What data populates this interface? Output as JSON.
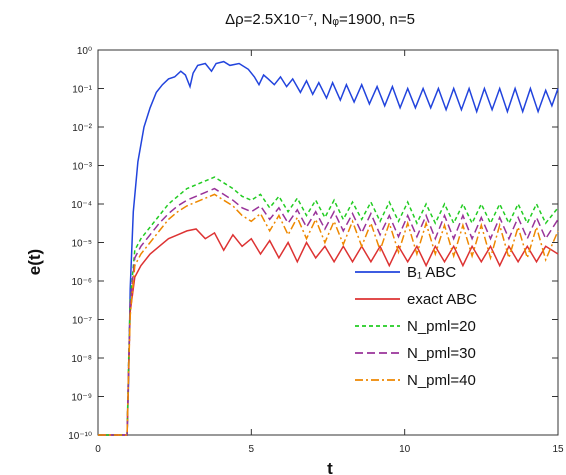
{
  "chart_data": {
    "type": "line",
    "title": "Δρ=2.5X10⁻⁷, Nᵩ=1900, n=5",
    "xlabel": "t",
    "ylabel": "e(t)",
    "xlim": [
      0,
      15
    ],
    "ylim_exp": [
      -10,
      0
    ],
    "yscale": "log",
    "grid": false,
    "legend_position": "bottom-right",
    "x_ticks": [
      "0",
      "5",
      "10",
      "15"
    ],
    "y_ticks": [
      "10⁰",
      "10⁻¹",
      "10⁻²",
      "10⁻³",
      "10⁻⁴",
      "10⁻⁵",
      "10⁻⁶",
      "10⁻⁷",
      "10⁻⁸",
      "10⁻⁹",
      "10⁻¹⁰"
    ],
    "series": [
      {
        "name": "B₁ ABC",
        "color": "#2244dd",
        "dash": "solid",
        "log10": [
          [
            0,
            -10
          ],
          [
            0.95,
            -10
          ],
          [
            1.0,
            -8.5
          ],
          [
            1.05,
            -6.2
          ],
          [
            1.15,
            -4.2
          ],
          [
            1.3,
            -2.9
          ],
          [
            1.5,
            -2.0
          ],
          [
            1.7,
            -1.5
          ],
          [
            1.9,
            -1.1
          ],
          [
            2.1,
            -0.9
          ],
          [
            2.3,
            -0.75
          ],
          [
            2.5,
            -0.7
          ],
          [
            2.7,
            -0.55
          ],
          [
            2.85,
            -0.65
          ],
          [
            3.0,
            -0.95
          ],
          [
            3.1,
            -0.6
          ],
          [
            3.25,
            -0.4
          ],
          [
            3.5,
            -0.35
          ],
          [
            3.7,
            -0.55
          ],
          [
            3.85,
            -0.35
          ],
          [
            4.1,
            -0.3
          ],
          [
            4.3,
            -0.4
          ],
          [
            4.6,
            -0.35
          ],
          [
            4.9,
            -0.5
          ],
          [
            5.1,
            -0.7
          ],
          [
            5.25,
            -0.9
          ],
          [
            5.4,
            -0.65
          ],
          [
            5.55,
            -0.75
          ],
          [
            5.75,
            -0.9
          ],
          [
            5.95,
            -0.7
          ],
          [
            6.15,
            -0.95
          ],
          [
            6.35,
            -0.75
          ],
          [
            6.6,
            -1.1
          ],
          [
            6.8,
            -0.8
          ],
          [
            7.0,
            -1.15
          ],
          [
            7.2,
            -0.85
          ],
          [
            7.45,
            -1.25
          ],
          [
            7.65,
            -0.85
          ],
          [
            7.9,
            -1.3
          ],
          [
            8.1,
            -0.9
          ],
          [
            8.35,
            -1.35
          ],
          [
            8.6,
            -0.9
          ],
          [
            8.85,
            -1.4
          ],
          [
            9.1,
            -0.95
          ],
          [
            9.35,
            -1.45
          ],
          [
            9.6,
            -0.95
          ],
          [
            9.85,
            -1.5
          ],
          [
            10.1,
            -1.0
          ],
          [
            10.35,
            -1.5
          ],
          [
            10.6,
            -1.0
          ],
          [
            10.85,
            -1.5
          ],
          [
            11.1,
            -1.0
          ],
          [
            11.35,
            -1.55
          ],
          [
            11.6,
            -1.0
          ],
          [
            11.85,
            -1.55
          ],
          [
            12.1,
            -1.0
          ],
          [
            12.35,
            -1.6
          ],
          [
            12.6,
            -1.0
          ],
          [
            12.85,
            -1.55
          ],
          [
            13.1,
            -1.0
          ],
          [
            13.35,
            -1.6
          ],
          [
            13.6,
            -1.0
          ],
          [
            13.85,
            -1.6
          ],
          [
            14.1,
            -1.0
          ],
          [
            14.35,
            -1.6
          ],
          [
            14.6,
            -1.05
          ],
          [
            14.8,
            -1.45
          ],
          [
            15.0,
            -1.0
          ]
        ]
      },
      {
        "name": "exact ABC",
        "color": "#dd3333",
        "dash": "solid",
        "log10": [
          [
            0,
            -10
          ],
          [
            0.95,
            -10
          ],
          [
            1.0,
            -8.2
          ],
          [
            1.05,
            -6.8
          ],
          [
            1.2,
            -5.9
          ],
          [
            1.4,
            -5.6
          ],
          [
            1.7,
            -5.3
          ],
          [
            2.0,
            -5.1
          ],
          [
            2.3,
            -4.9
          ],
          [
            2.6,
            -4.8
          ],
          [
            2.9,
            -4.7
          ],
          [
            3.2,
            -4.65
          ],
          [
            3.5,
            -4.9
          ],
          [
            3.8,
            -4.75
          ],
          [
            4.1,
            -5.2
          ],
          [
            4.4,
            -4.8
          ],
          [
            4.7,
            -5.1
          ],
          [
            5.0,
            -4.9
          ],
          [
            5.3,
            -5.3
          ],
          [
            5.6,
            -4.95
          ],
          [
            5.9,
            -5.4
          ],
          [
            6.2,
            -5.0
          ],
          [
            6.5,
            -5.5
          ],
          [
            6.8,
            -5.0
          ],
          [
            7.1,
            -5.4
          ],
          [
            7.4,
            -5.1
          ],
          [
            7.7,
            -5.5
          ],
          [
            8.0,
            -5.1
          ],
          [
            8.3,
            -5.5
          ],
          [
            8.6,
            -5.1
          ],
          [
            8.9,
            -5.5
          ],
          [
            9.2,
            -5.1
          ],
          [
            9.5,
            -5.6
          ],
          [
            9.8,
            -5.1
          ],
          [
            10.1,
            -5.5
          ],
          [
            10.4,
            -5.1
          ],
          [
            10.7,
            -5.6
          ],
          [
            11.0,
            -5.1
          ],
          [
            11.3,
            -5.5
          ],
          [
            11.6,
            -5.1
          ],
          [
            11.9,
            -5.6
          ],
          [
            12.2,
            -5.1
          ],
          [
            12.5,
            -5.5
          ],
          [
            12.8,
            -5.1
          ],
          [
            13.1,
            -5.6
          ],
          [
            13.4,
            -5.1
          ],
          [
            13.7,
            -5.5
          ],
          [
            14.0,
            -5.1
          ],
          [
            14.3,
            -5.5
          ],
          [
            14.6,
            -5.1
          ],
          [
            15.0,
            -5.3
          ]
        ]
      },
      {
        "name": "N_pml=20",
        "color": "#22cc22",
        "dash": "4,3",
        "log10": [
          [
            0,
            -10
          ],
          [
            0.95,
            -10
          ],
          [
            1.0,
            -8.0
          ],
          [
            1.05,
            -6.5
          ],
          [
            1.2,
            -5.2
          ],
          [
            1.4,
            -4.9
          ],
          [
            1.7,
            -4.6
          ],
          [
            2.0,
            -4.3
          ],
          [
            2.3,
            -4.0
          ],
          [
            2.6,
            -3.8
          ],
          [
            2.9,
            -3.6
          ],
          [
            3.2,
            -3.5
          ],
          [
            3.5,
            -3.4
          ],
          [
            3.8,
            -3.3
          ],
          [
            4.1,
            -3.45
          ],
          [
            4.4,
            -3.6
          ],
          [
            4.7,
            -3.8
          ],
          [
            5.0,
            -3.9
          ],
          [
            5.3,
            -3.75
          ],
          [
            5.6,
            -4.1
          ],
          [
            5.9,
            -3.8
          ],
          [
            6.2,
            -4.2
          ],
          [
            6.5,
            -3.85
          ],
          [
            6.8,
            -4.3
          ],
          [
            7.1,
            -3.9
          ],
          [
            7.4,
            -4.35
          ],
          [
            7.7,
            -3.9
          ],
          [
            8.0,
            -4.4
          ],
          [
            8.3,
            -3.95
          ],
          [
            8.6,
            -4.4
          ],
          [
            8.9,
            -3.95
          ],
          [
            9.2,
            -4.45
          ],
          [
            9.5,
            -3.95
          ],
          [
            9.8,
            -4.45
          ],
          [
            10.1,
            -3.95
          ],
          [
            10.4,
            -4.5
          ],
          [
            10.7,
            -4.0
          ],
          [
            11.0,
            -4.5
          ],
          [
            11.3,
            -4.0
          ],
          [
            11.6,
            -4.5
          ],
          [
            11.9,
            -4.0
          ],
          [
            12.2,
            -4.5
          ],
          [
            12.5,
            -4.0
          ],
          [
            12.8,
            -4.5
          ],
          [
            13.1,
            -4.0
          ],
          [
            13.4,
            -4.5
          ],
          [
            13.7,
            -4.0
          ],
          [
            14.0,
            -4.5
          ],
          [
            14.3,
            -4.0
          ],
          [
            14.6,
            -4.5
          ],
          [
            15.0,
            -4.1
          ]
        ]
      },
      {
        "name": "N_pml=30",
        "color": "#993399",
        "dash": "8,4",
        "log10": [
          [
            0,
            -10
          ],
          [
            0.95,
            -10
          ],
          [
            1.0,
            -8.1
          ],
          [
            1.05,
            -6.6
          ],
          [
            1.2,
            -5.4
          ],
          [
            1.4,
            -5.1
          ],
          [
            1.7,
            -4.8
          ],
          [
            2.0,
            -4.5
          ],
          [
            2.3,
            -4.25
          ],
          [
            2.6,
            -4.05
          ],
          [
            2.9,
            -3.9
          ],
          [
            3.2,
            -3.8
          ],
          [
            3.5,
            -3.7
          ],
          [
            3.8,
            -3.6
          ],
          [
            4.1,
            -3.75
          ],
          [
            4.4,
            -3.9
          ],
          [
            4.7,
            -4.1
          ],
          [
            5.0,
            -4.2
          ],
          [
            5.3,
            -4.05
          ],
          [
            5.6,
            -4.4
          ],
          [
            5.9,
            -4.1
          ],
          [
            6.2,
            -4.5
          ],
          [
            6.5,
            -4.15
          ],
          [
            6.8,
            -4.6
          ],
          [
            7.1,
            -4.2
          ],
          [
            7.4,
            -4.65
          ],
          [
            7.7,
            -4.2
          ],
          [
            8.0,
            -4.7
          ],
          [
            8.3,
            -4.25
          ],
          [
            8.6,
            -4.75
          ],
          [
            8.9,
            -4.25
          ],
          [
            9.2,
            -4.8
          ],
          [
            9.5,
            -4.3
          ],
          [
            9.8,
            -4.85
          ],
          [
            10.1,
            -4.3
          ],
          [
            10.4,
            -4.85
          ],
          [
            10.7,
            -4.3
          ],
          [
            11.0,
            -4.9
          ],
          [
            11.3,
            -4.3
          ],
          [
            11.6,
            -4.9
          ],
          [
            11.9,
            -4.3
          ],
          [
            12.2,
            -4.9
          ],
          [
            12.5,
            -4.35
          ],
          [
            12.8,
            -4.9
          ],
          [
            13.1,
            -4.35
          ],
          [
            13.4,
            -4.9
          ],
          [
            13.7,
            -4.35
          ],
          [
            14.0,
            -4.9
          ],
          [
            14.3,
            -4.35
          ],
          [
            14.6,
            -4.9
          ],
          [
            15.0,
            -4.4
          ]
        ]
      },
      {
        "name": "N_pml=40",
        "color": "#ee8800",
        "dash": "8,3,2,3",
        "log10": [
          [
            0,
            -10
          ],
          [
            0.95,
            -10
          ],
          [
            1.0,
            -8.3
          ],
          [
            1.05,
            -6.9
          ],
          [
            1.2,
            -5.6
          ],
          [
            1.4,
            -5.3
          ],
          [
            1.7,
            -5.0
          ],
          [
            2.0,
            -4.7
          ],
          [
            2.3,
            -4.4
          ],
          [
            2.6,
            -4.2
          ],
          [
            2.9,
            -4.05
          ],
          [
            3.2,
            -3.95
          ],
          [
            3.5,
            -3.85
          ],
          [
            3.8,
            -3.75
          ],
          [
            4.1,
            -3.9
          ],
          [
            4.4,
            -4.05
          ],
          [
            4.7,
            -4.3
          ],
          [
            5.0,
            -4.45
          ],
          [
            5.3,
            -4.25
          ],
          [
            5.6,
            -4.7
          ],
          [
            5.9,
            -4.3
          ],
          [
            6.2,
            -4.8
          ],
          [
            6.5,
            -4.35
          ],
          [
            6.8,
            -4.9
          ],
          [
            7.1,
            -4.4
          ],
          [
            7.4,
            -5.0
          ],
          [
            7.7,
            -4.45
          ],
          [
            8.0,
            -5.05
          ],
          [
            8.3,
            -4.45
          ],
          [
            8.6,
            -5.1
          ],
          [
            8.9,
            -4.5
          ],
          [
            9.2,
            -5.2
          ],
          [
            9.5,
            -4.5
          ],
          [
            9.8,
            -5.25
          ],
          [
            10.1,
            -4.5
          ],
          [
            10.4,
            -5.3
          ],
          [
            10.7,
            -4.5
          ],
          [
            11.0,
            -5.3
          ],
          [
            11.3,
            -4.55
          ],
          [
            11.6,
            -5.35
          ],
          [
            11.9,
            -4.55
          ],
          [
            12.2,
            -5.35
          ],
          [
            12.5,
            -4.55
          ],
          [
            12.8,
            -5.4
          ],
          [
            13.1,
            -4.55
          ],
          [
            13.4,
            -5.4
          ],
          [
            13.7,
            -4.6
          ],
          [
            14.0,
            -5.4
          ],
          [
            14.3,
            -4.6
          ],
          [
            14.6,
            -5.45
          ],
          [
            15.0,
            -4.7
          ]
        ]
      }
    ]
  }
}
